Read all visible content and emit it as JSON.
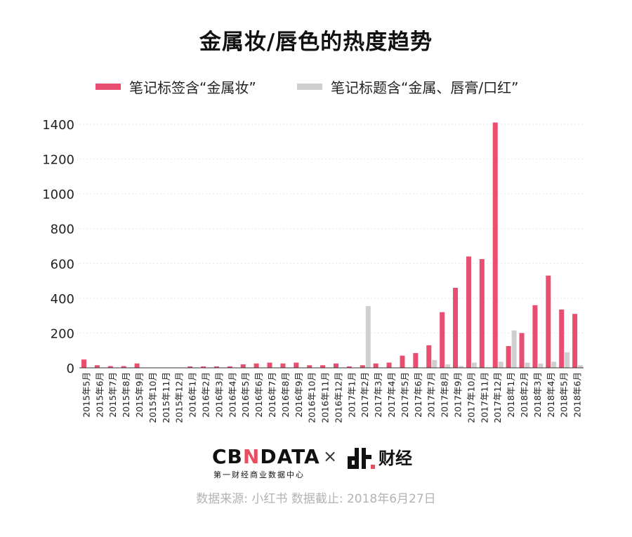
{
  "title": "金属妆/唇色的热度趋势",
  "legend": {
    "series1_label": "笔记标签含“金属妆”",
    "series2_label": "笔记标题含“金属、唇膏/口红”"
  },
  "colors": {
    "series1": "#e84e70",
    "series2": "#cfcfcf",
    "axis": "#333333",
    "grid": "#e6e6e6"
  },
  "brand": {
    "cbn_part1": "CB",
    "cbn_mark": "N",
    "cbn_part2": "DATA",
    "cbn_sub": "第一财经商业数据中心",
    "times": "×",
    "dt_text": "财经"
  },
  "source": "数据来源: 小红书 数据截止: 2018年6月27日",
  "chart_data": {
    "type": "bar",
    "title": "金属妆/唇色的热度趋势",
    "xlabel": "",
    "ylabel": "",
    "ylim": [
      0,
      1400
    ],
    "yticks": [
      0,
      200,
      400,
      600,
      800,
      1000,
      1200,
      1400
    ],
    "grid": true,
    "legend_position": "top",
    "categories": [
      "2015年5月",
      "2015年6月",
      "2015年7月",
      "2015年8月",
      "2015年9月",
      "2015年10月",
      "2015年11月",
      "2015年12月",
      "2016年1月",
      "2016年2月",
      "2016年3月",
      "2016年4月",
      "2016年5月",
      "2016年6月",
      "2016年7月",
      "2016年8月",
      "2016年9月",
      "2016年10月",
      "2016年11月",
      "2016年12月",
      "2017年1月",
      "2017年2月",
      "2017年3月",
      "2017年4月",
      "2017年5月",
      "2017年6月",
      "2017年7月",
      "2017年8月",
      "2017年9月",
      "2017年10月",
      "2017年11月",
      "2017年12月",
      "2018年1月",
      "2018年2月",
      "2018年3月",
      "2018年4月",
      "2018年5月",
      "2018年6月"
    ],
    "series": [
      {
        "name": "笔记标签含“金属妆”",
        "values": [
          48,
          15,
          10,
          10,
          25,
          0,
          0,
          0,
          8,
          8,
          8,
          8,
          20,
          25,
          30,
          25,
          30,
          15,
          15,
          25,
          8,
          15,
          25,
          30,
          70,
          85,
          130,
          320,
          460,
          640,
          625,
          1410,
          125,
          200,
          360,
          530,
          335,
          310
        ]
      },
      {
        "name": "笔记标题含“金属、唇膏/口红”",
        "values": [
          0,
          0,
          0,
          0,
          0,
          0,
          0,
          0,
          0,
          0,
          0,
          0,
          0,
          0,
          0,
          0,
          0,
          0,
          0,
          0,
          0,
          355,
          0,
          0,
          0,
          0,
          45,
          20,
          10,
          30,
          0,
          35,
          215,
          30,
          25,
          35,
          90,
          15
        ]
      }
    ]
  }
}
